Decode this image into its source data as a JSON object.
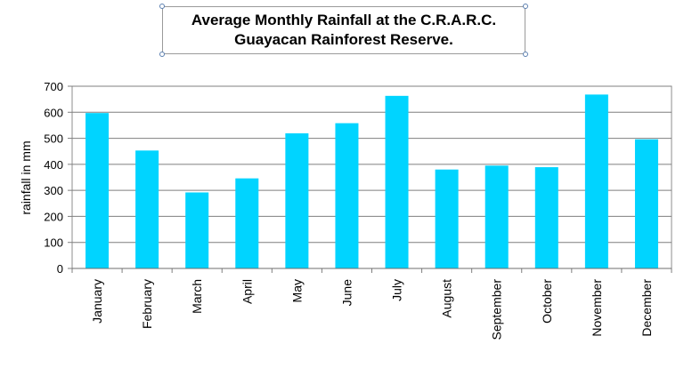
{
  "chart_data": {
    "type": "bar",
    "title_lines": [
      "Average Monthly Rainfall at the C.R.A.R.C.",
      "Guayacan Rainforest Reserve."
    ],
    "xlabel": "",
    "ylabel": "rainfall in mm",
    "ylim": [
      0,
      700
    ],
    "yticks": [
      0,
      100,
      200,
      300,
      400,
      500,
      600,
      700
    ],
    "categories": [
      "January",
      "February",
      "March",
      "April",
      "May",
      "June",
      "July",
      "August",
      "September",
      "October",
      "November",
      "December"
    ],
    "values": [
      597,
      453,
      292,
      346,
      519,
      558,
      663,
      380,
      395,
      389,
      668,
      496
    ],
    "grid": true,
    "bar_color": "#00d4ff"
  }
}
